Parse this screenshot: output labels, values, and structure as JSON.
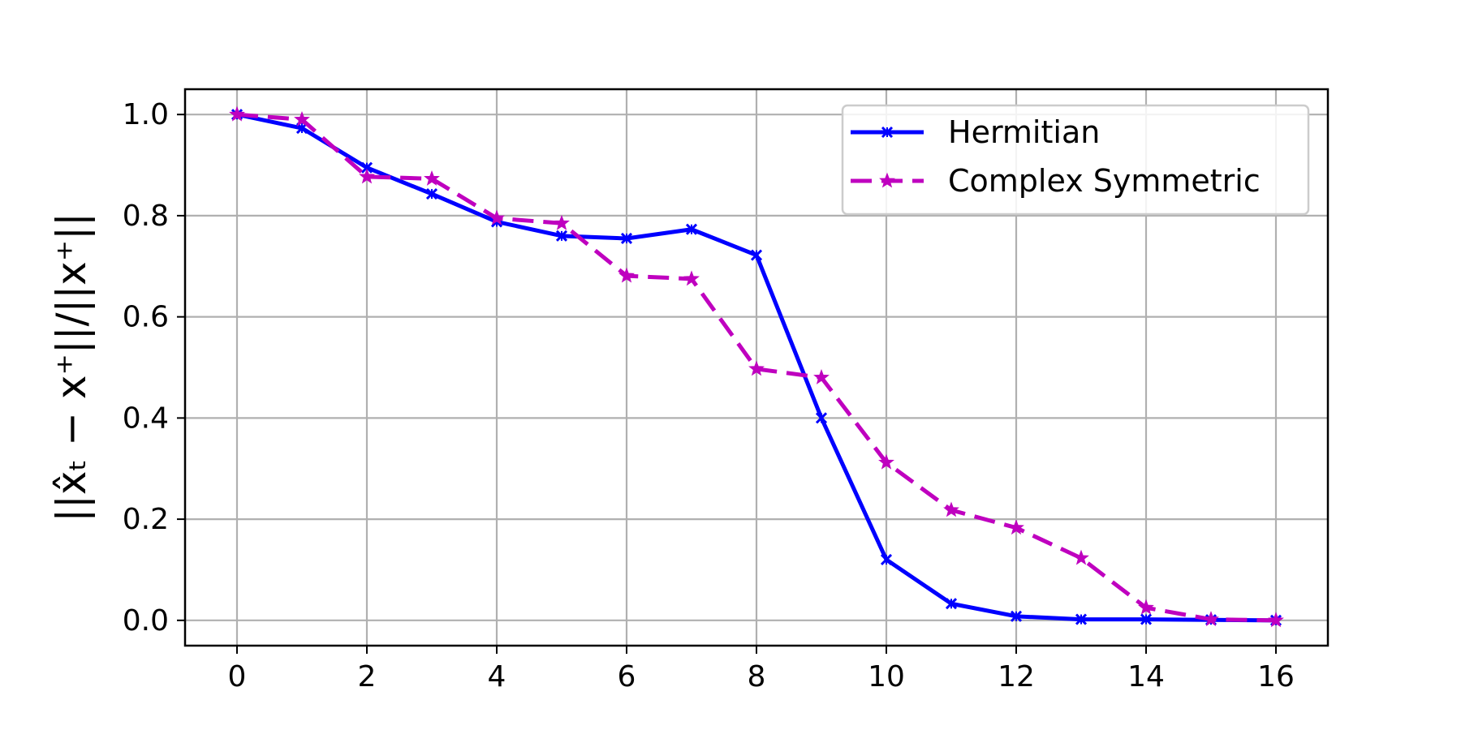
{
  "chart_data": {
    "type": "line",
    "xlim": [
      -0.8,
      16.8
    ],
    "ylim": [
      -0.05,
      1.05
    ],
    "xticks": [
      0,
      2,
      4,
      6,
      8,
      10,
      12,
      14,
      16
    ],
    "yticks": [
      "0.0",
      "0.2",
      "0.4",
      "0.6",
      "0.8",
      "1.0"
    ],
    "ylabel_text": "||x̂ₜ − x⁺||/||x⁺||",
    "xlabel": "",
    "grid": true,
    "legend_position": "top-right",
    "series": [
      {
        "name": "Hermitian",
        "color": "#0000ff",
        "linestyle": "solid",
        "marker": "x",
        "x": [
          0,
          1,
          2,
          3,
          4,
          5,
          6,
          7,
          8,
          9,
          10,
          11,
          12,
          13,
          14,
          15,
          16
        ],
        "y": [
          1.0,
          0.973,
          0.895,
          0.843,
          0.788,
          0.76,
          0.755,
          0.773,
          0.722,
          0.4,
          0.12,
          0.033,
          0.008,
          0.002,
          0.002,
          0.001,
          0.0
        ]
      },
      {
        "name": "Complex Symmetric",
        "color": "#bf00bf",
        "linestyle": "dashed",
        "marker": "star",
        "x": [
          0,
          1,
          2,
          3,
          4,
          5,
          6,
          7,
          8,
          9,
          10,
          11,
          12,
          13,
          14,
          15,
          16
        ],
        "y": [
          1.0,
          0.99,
          0.877,
          0.873,
          0.795,
          0.785,
          0.681,
          0.675,
          0.497,
          0.48,
          0.312,
          0.218,
          0.183,
          0.123,
          0.025,
          0.002,
          0.0
        ]
      }
    ]
  }
}
